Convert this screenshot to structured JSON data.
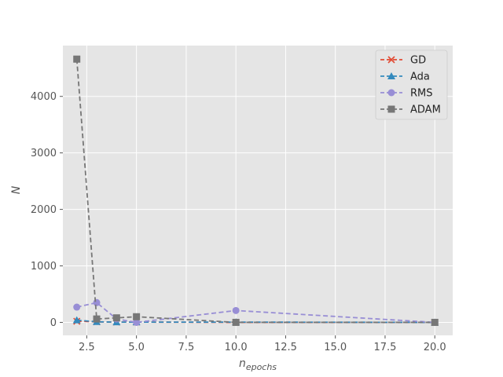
{
  "chart_data": {
    "type": "line",
    "title": "",
    "xlabel": "n",
    "xlabel_sub": "epochs",
    "ylabel": "N",
    "xlim": [
      1.3,
      20.9
    ],
    "ylim": [
      -230,
      4900
    ],
    "xticks": [
      2.5,
      5.0,
      7.5,
      10.0,
      12.5,
      15.0,
      17.5,
      20.0
    ],
    "xtick_labels": [
      "2.5",
      "5.0",
      "7.5",
      "10.0",
      "12.5",
      "15.0",
      "17.5",
      "20.0"
    ],
    "yticks": [
      0,
      1000,
      2000,
      3000,
      4000
    ],
    "ytick_labels": [
      "0",
      "1000",
      "2000",
      "3000",
      "4000"
    ],
    "grid": true,
    "legend_position": "top-right",
    "series": [
      {
        "name": "GD",
        "color": "#E24A33",
        "marker": "x",
        "x": [
          2,
          3,
          4,
          5,
          10,
          20
        ],
        "y": [
          20,
          10,
          5,
          5,
          0,
          0
        ]
      },
      {
        "name": "Ada",
        "color": "#348ABD",
        "marker": "triangle",
        "x": [
          2,
          3,
          4,
          5,
          10,
          20
        ],
        "y": [
          40,
          10,
          5,
          5,
          5,
          0
        ]
      },
      {
        "name": "RMS",
        "color": "#988ED5",
        "marker": "circle",
        "x": [
          2,
          3,
          4,
          5,
          10,
          20
        ],
        "y": [
          270,
          350,
          60,
          0,
          210,
          0
        ]
      },
      {
        "name": "ADAM",
        "color": "#777777",
        "marker": "square",
        "x": [
          2,
          3,
          4,
          5,
          10,
          20
        ],
        "y": [
          4660,
          60,
          80,
          100,
          0,
          0
        ]
      }
    ]
  }
}
